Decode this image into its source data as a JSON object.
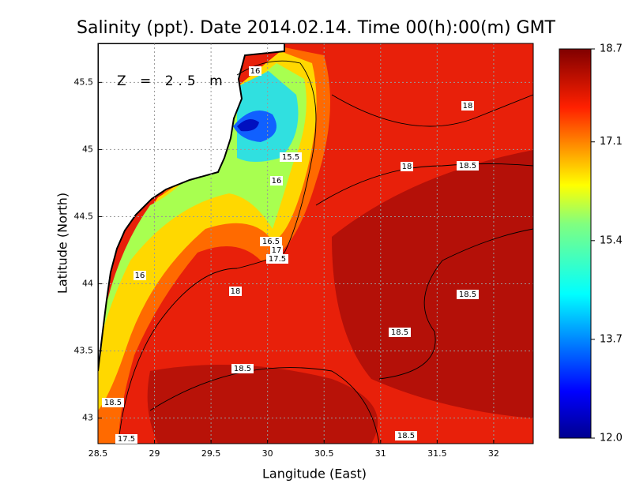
{
  "title": "Salinity (ppt). Date 2014.02.14. Time 00(h):00(m) GMT",
  "annotation": "Z = 2.5 m",
  "x_axis": {
    "label": "Langitude (East)",
    "lim": [
      28.5,
      32.35
    ],
    "ticks": [
      28.5,
      29,
      29.5,
      30,
      30.5,
      31,
      31.5,
      32
    ]
  },
  "y_axis": {
    "label": "Latitude (North)",
    "lim": [
      42.81,
      45.79
    ],
    "ticks": [
      43,
      43.5,
      44,
      44.5,
      45,
      45.5
    ]
  },
  "colorbar": {
    "lim": [
      12,
      18.7
    ],
    "ticks": [
      {
        "value": 12,
        "label": "12.0"
      },
      13.7,
      15.4,
      17.1,
      18.7
    ]
  },
  "contour_labels": [
    "16",
    "18",
    "15.5",
    "18",
    "18.5",
    "16",
    "16.5",
    "17",
    "17.5",
    "16",
    "18",
    "18.5",
    "18.5",
    "18.5",
    "18.5",
    "17.5",
    "18.5"
  ]
}
